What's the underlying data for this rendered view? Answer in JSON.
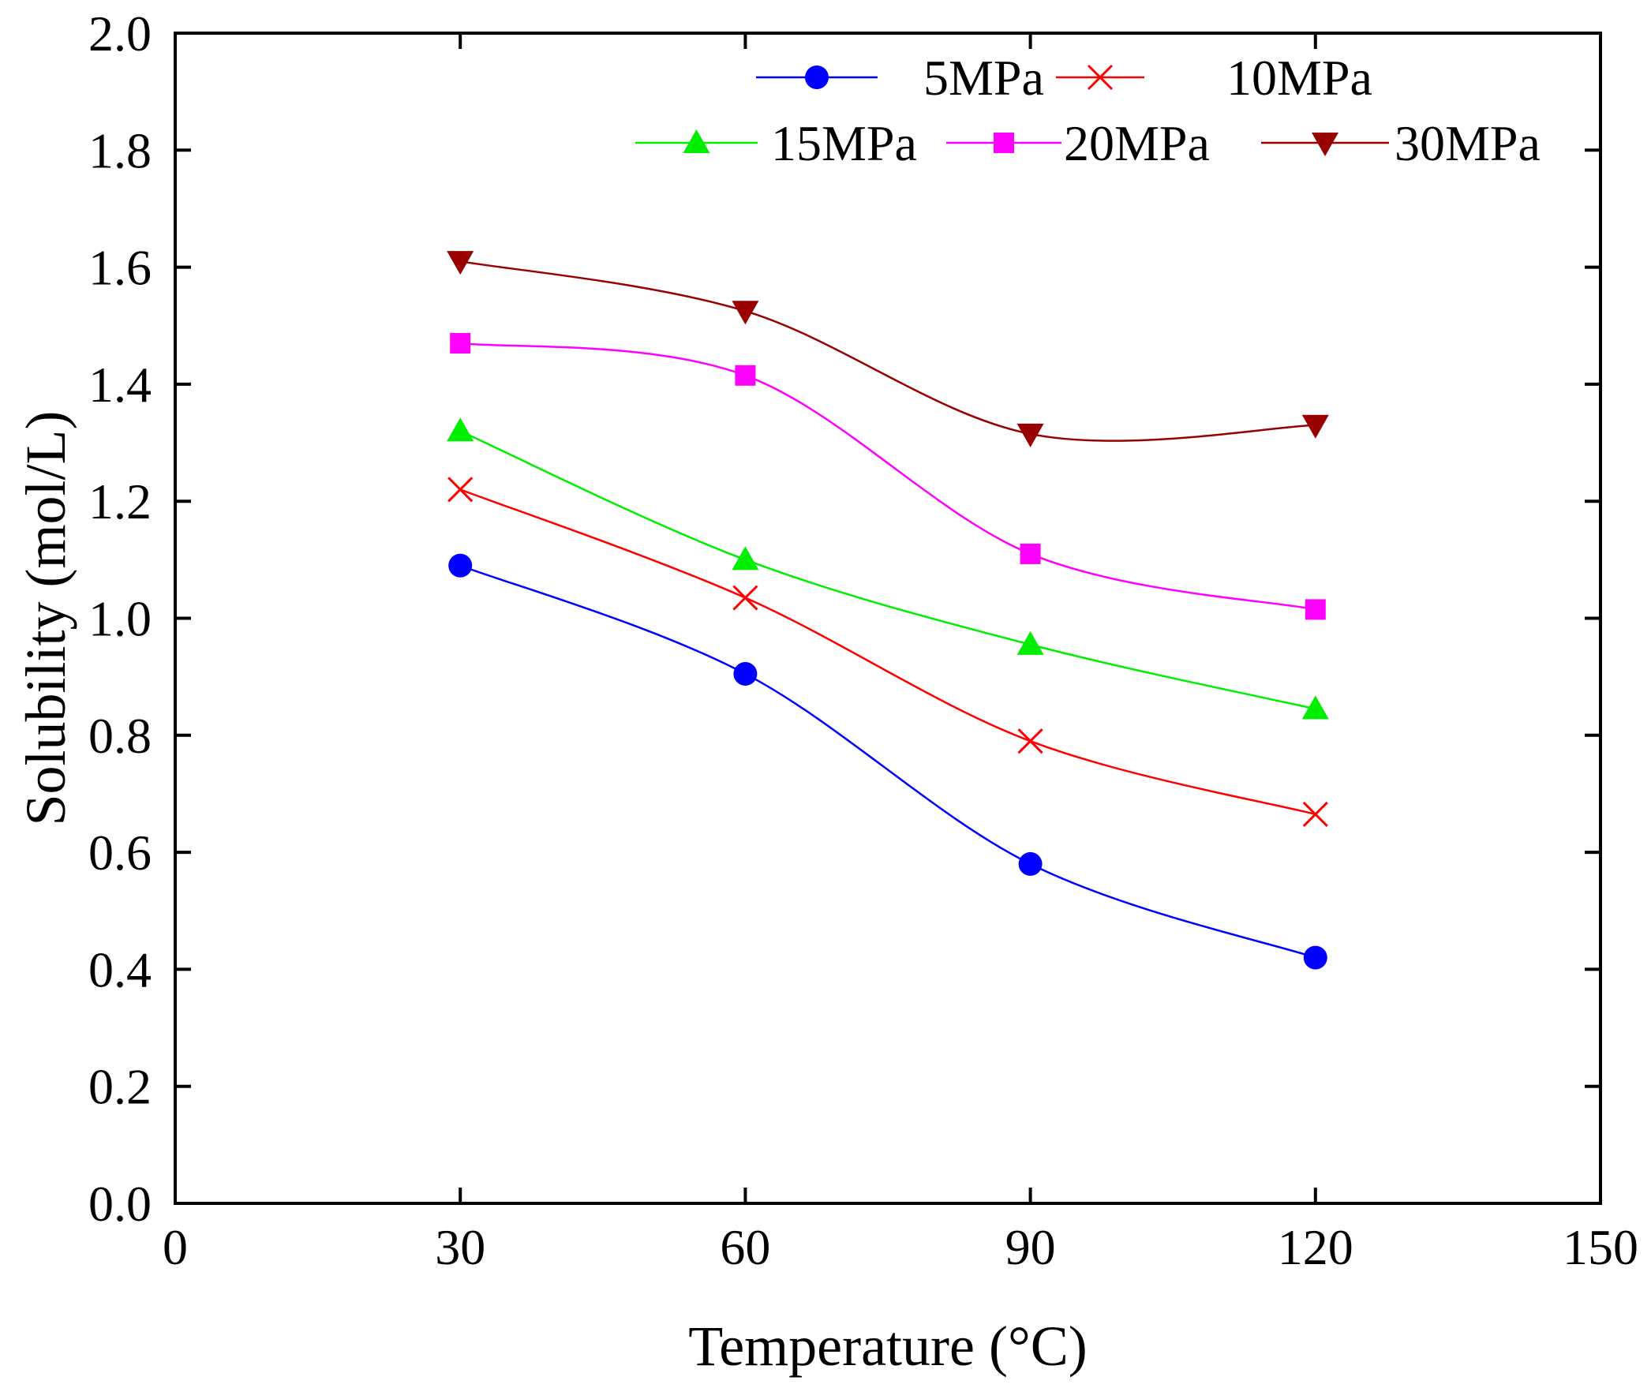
{
  "chart_data": {
    "type": "line",
    "title": "",
    "xlabel": "Temperature (°C)",
    "ylabel": "Solubility (mol/L)",
    "xlim": [
      0,
      150
    ],
    "ylim": [
      0.0,
      2.0
    ],
    "xticks": [
      0,
      30,
      60,
      90,
      120,
      150
    ],
    "xtick_labels": [
      "0",
      "30",
      "60",
      "90",
      "120",
      "150"
    ],
    "yticks": [
      0.0,
      0.2,
      0.4,
      0.6,
      0.8,
      1.0,
      1.2,
      1.4,
      1.6,
      1.8,
      2.0
    ],
    "ytick_labels": [
      "0.0",
      "0.2",
      "0.4",
      "0.6",
      "0.8",
      "1.0",
      "1.2",
      "1.4",
      "1.6",
      "1.8",
      "2.0"
    ],
    "grid": false,
    "legend_position": "top-right",
    "x": [
      30,
      60,
      90,
      120
    ],
    "series": [
      {
        "name": "5MPa",
        "color": "#0000ff",
        "marker": "circle",
        "values": [
          1.09,
          0.905,
          0.58,
          0.42
        ]
      },
      {
        "name": "10MPa",
        "color": "#ff0000",
        "marker": "x",
        "values": [
          1.22,
          1.035,
          0.79,
          0.665
        ]
      },
      {
        "name": "15MPa",
        "color": "#00ee00",
        "marker": "triangle-up",
        "values": [
          1.32,
          1.1,
          0.955,
          0.845
        ]
      },
      {
        "name": "20MPa",
        "color": "#ff00ff",
        "marker": "square",
        "values": [
          1.47,
          1.415,
          1.11,
          1.015
        ]
      },
      {
        "name": "30MPa",
        "color": "#990000",
        "marker": "triangle-down",
        "values": [
          1.61,
          1.525,
          1.315,
          1.33
        ]
      }
    ]
  }
}
